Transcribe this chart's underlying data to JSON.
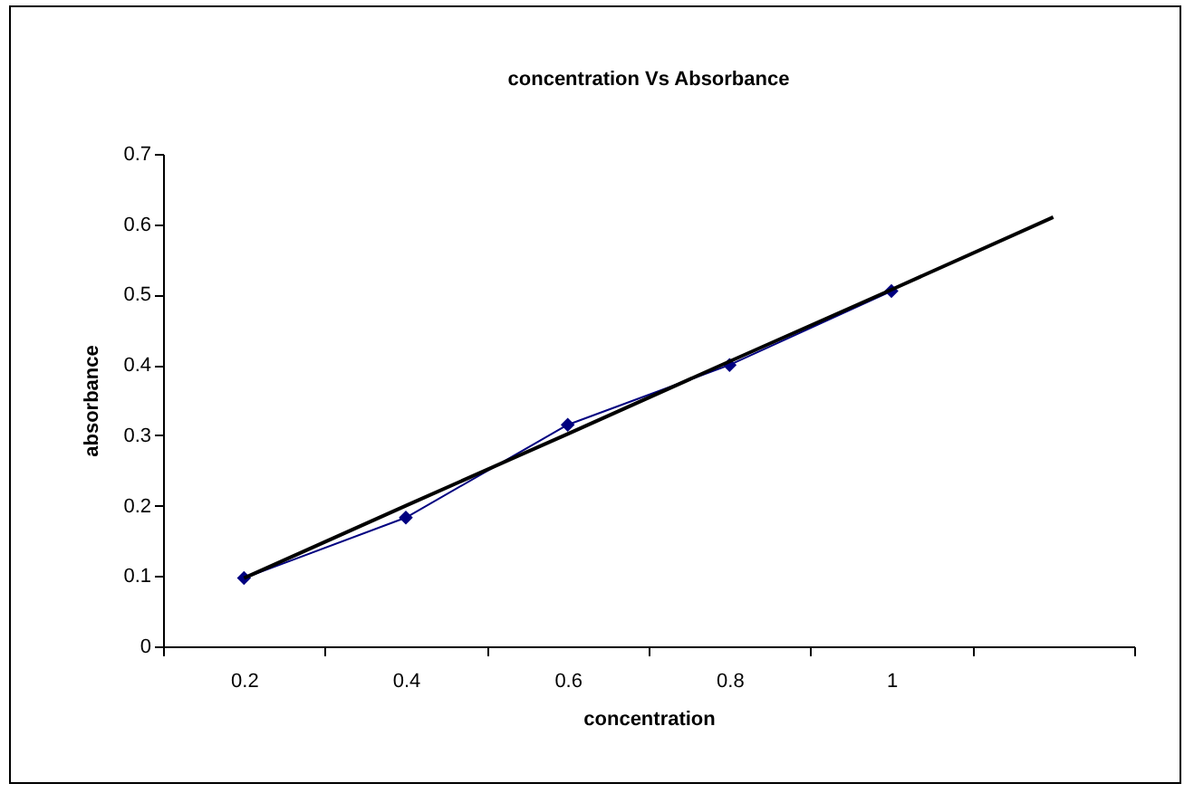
{
  "chart_data": {
    "type": "line",
    "title": "concentration Vs Absorbance",
    "xlabel": "concentration",
    "ylabel": "absorbance",
    "categories": [
      "0.2",
      "0.4",
      "0.6",
      "0.8",
      "1",
      null
    ],
    "series": [
      {
        "color": "#000080",
        "values": [
          0.097,
          0.183,
          0.315,
          0.4,
          0.505,
          null
        ],
        "marker": "diamond"
      },
      {
        "type": "line",
        "color": "#000000",
        "values": [
          0.097,
          0.2,
          0.302,
          0.405,
          0.507,
          0.61
        ],
        "marker": "none"
      }
    ],
    "ylim": [
      0,
      0.7
    ],
    "yticks": [
      0,
      0.1,
      0.2,
      0.3,
      0.4,
      0.5,
      0.6,
      0.7
    ],
    "grid": false
  }
}
